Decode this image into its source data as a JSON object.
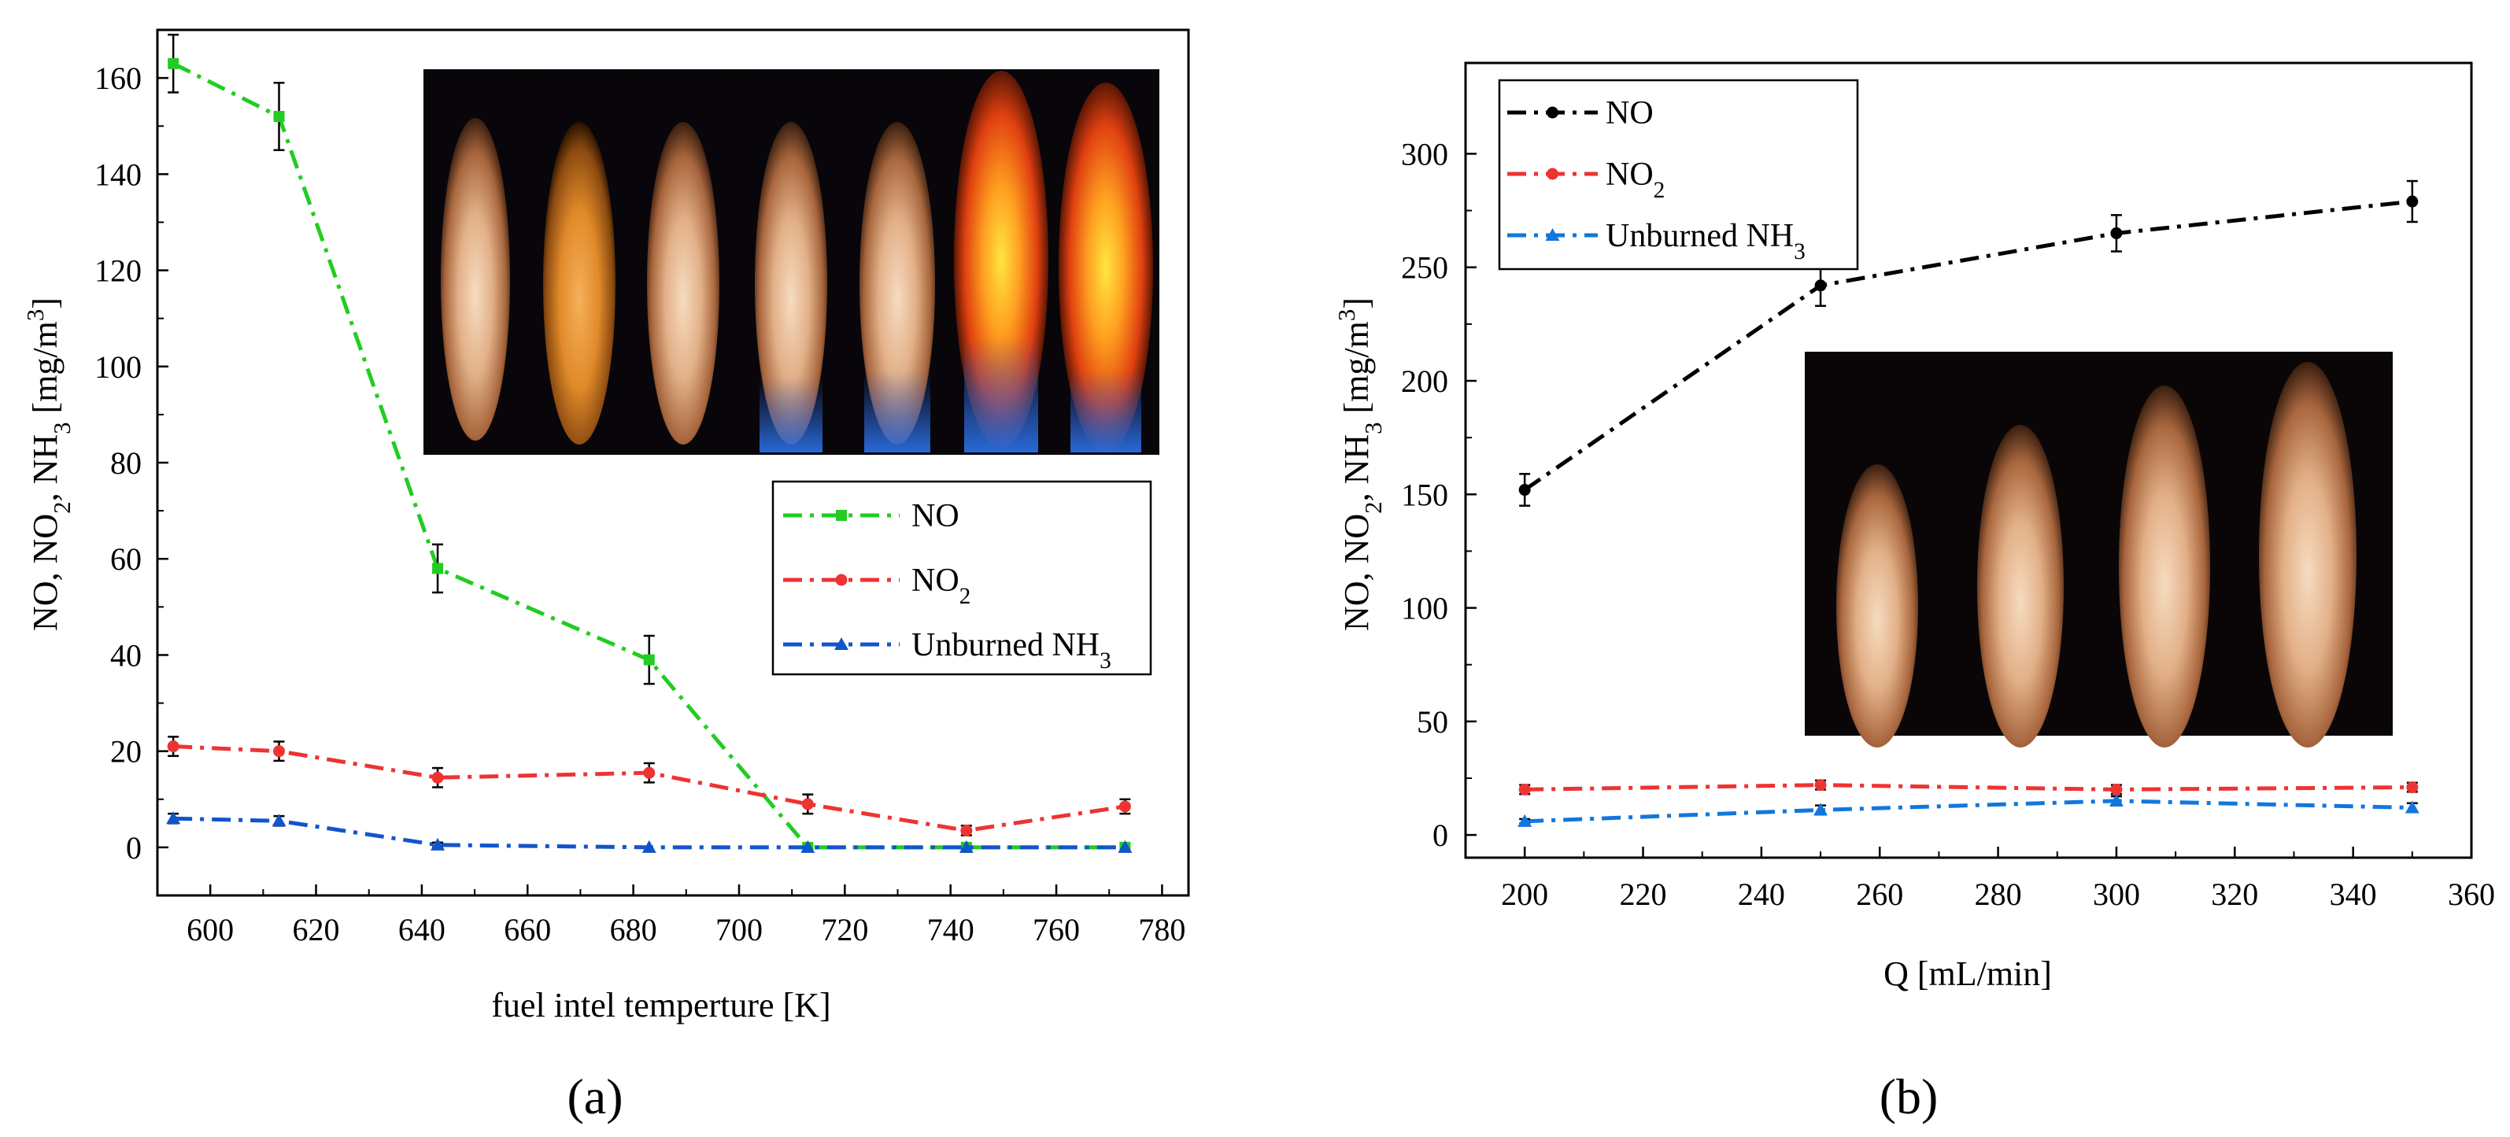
{
  "chart_data": [
    {
      "type": "line",
      "panel_label": "(a)",
      "title": "",
      "xlabel": "fuel intel temperture [K]",
      "ylabel_parts": [
        "NO, NO",
        "2",
        ", NH",
        "3",
        "  [mg/m",
        "3",
        "]"
      ],
      "xlim": [
        590,
        785
      ],
      "ylim": [
        -10,
        170
      ],
      "xticks": [
        600,
        620,
        640,
        660,
        680,
        700,
        720,
        740,
        760,
        780
      ],
      "yticks": [
        0,
        20,
        40,
        60,
        80,
        100,
        120,
        140,
        160
      ],
      "legend_position": "middle-right",
      "inset_image": "seven flame photographs in a row, last two orange-blue",
      "series": [
        {
          "name": "NO",
          "legend_label": "NO",
          "legend_sub": "",
          "legend_suffix": "",
          "color": "#22cc22",
          "marker": "square",
          "x": [
            593,
            613,
            643,
            683,
            713,
            743,
            773
          ],
          "values": [
            163,
            152,
            58,
            39,
            0,
            0,
            0
          ],
          "errors": [
            6,
            7,
            5,
            5,
            0,
            0,
            0
          ]
        },
        {
          "name": "NO2",
          "legend_label": "NO",
          "legend_sub": "2",
          "legend_suffix": "",
          "color": "#ee3333",
          "marker": "circle",
          "x": [
            593,
            613,
            643,
            683,
            713,
            743,
            773
          ],
          "values": [
            21,
            20,
            14.5,
            15.5,
            9,
            3.5,
            8.5
          ],
          "errors": [
            2,
            2,
            2,
            2,
            2,
            1,
            1.5
          ]
        },
        {
          "name": "Unburned NH3",
          "legend_label": "Unburned NH",
          "legend_sub": "3",
          "legend_suffix": "",
          "color": "#1155cc",
          "marker": "triangle",
          "x": [
            593,
            613,
            643,
            683,
            713,
            743,
            773
          ],
          "values": [
            6,
            5.5,
            0.5,
            0,
            0,
            0,
            0
          ],
          "errors": [
            1,
            1,
            0.5,
            0,
            0,
            0,
            0
          ]
        }
      ]
    },
    {
      "type": "line",
      "panel_label": "(b)",
      "title": "",
      "xlabel": "Q [mL/min]",
      "ylabel_parts": [
        "NO, NO",
        "2",
        ", NH",
        "3",
        "  [mg/m",
        "3",
        "]"
      ],
      "xlim": [
        190,
        360
      ],
      "ylim": [
        -10,
        340
      ],
      "xticks": [
        200,
        220,
        240,
        260,
        280,
        300,
        320,
        340,
        360
      ],
      "yticks": [
        0,
        50,
        100,
        150,
        200,
        250,
        300
      ],
      "legend_position": "top-left",
      "inset_image": "four flame photographs of increasing height",
      "series": [
        {
          "name": "NO",
          "legend_label": "NO",
          "legend_sub": "",
          "legend_suffix": "",
          "color": "#000000",
          "marker": "circle",
          "x": [
            200,
            250,
            300,
            350
          ],
          "values": [
            152,
            242,
            265,
            279
          ],
          "errors": [
            7,
            9,
            8,
            9
          ]
        },
        {
          "name": "NO2",
          "legend_label": "NO",
          "legend_sub": "2",
          "legend_suffix": "",
          "color": "#ee3333",
          "marker": "circle",
          "x": [
            200,
            250,
            300,
            350
          ],
          "values": [
            20,
            22,
            20,
            21
          ],
          "errors": [
            2,
            2,
            2,
            2
          ]
        },
        {
          "name": "Unburned NH3",
          "legend_label": "Unburned NH",
          "legend_sub": "3",
          "legend_suffix": "",
          "color": "#1177dd",
          "marker": "triangle",
          "x": [
            200,
            250,
            300,
            350
          ],
          "values": [
            6,
            11,
            15,
            12
          ],
          "errors": [
            1,
            2,
            2,
            2
          ]
        }
      ]
    }
  ]
}
